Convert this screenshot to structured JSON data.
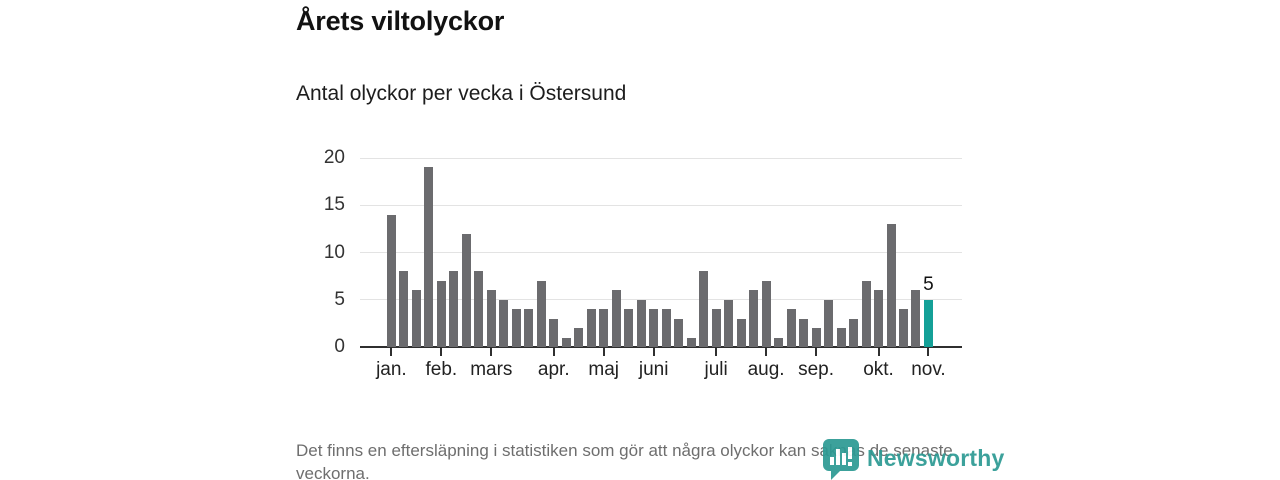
{
  "header": {
    "title": "Årets viltolyckor",
    "subtitle": "Antal olyckor per vecka i Östersund"
  },
  "footer": {
    "note": "Det finns en eftersläpning i statistiken som gör att några olyckor kan saknas de senaste veckorna.",
    "brand": "Newsworthy"
  },
  "chart_data": {
    "type": "bar",
    "title": "Årets viltolyckor",
    "subtitle": "Antal olyckor per vecka i Östersund",
    "xlabel": "",
    "ylabel": "",
    "ylim": [
      0,
      20
    ],
    "yticks": [
      0,
      5,
      10,
      15,
      20
    ],
    "grid": "horizontal",
    "x_unit": "vecka",
    "x": [
      1,
      2,
      3,
      4,
      5,
      6,
      7,
      8,
      9,
      10,
      11,
      12,
      13,
      14,
      15,
      16,
      17,
      18,
      19,
      20,
      21,
      22,
      23,
      24,
      25,
      26,
      27,
      28,
      29,
      30,
      31,
      32,
      33,
      34,
      35,
      36,
      37,
      38,
      39,
      40,
      41,
      42,
      43,
      44
    ],
    "values": [
      14,
      8,
      6,
      19,
      7,
      8,
      12,
      8,
      6,
      5,
      4,
      4,
      7,
      3,
      1,
      2,
      4,
      4,
      6,
      4,
      5,
      4,
      4,
      3,
      1,
      8,
      4,
      5,
      3,
      6,
      7,
      1,
      4,
      3,
      2,
      5,
      2,
      3,
      7,
      6,
      13,
      4,
      6,
      5
    ],
    "month_ticks": [
      {
        "label": "jan.",
        "week": 1
      },
      {
        "label": "feb.",
        "week": 5
      },
      {
        "label": "mars",
        "week": 9
      },
      {
        "label": "apr.",
        "week": 14
      },
      {
        "label": "maj",
        "week": 18
      },
      {
        "label": "juni",
        "week": 22
      },
      {
        "label": "juli",
        "week": 27
      },
      {
        "label": "aug.",
        "week": 31
      },
      {
        "label": "sep.",
        "week": 35
      },
      {
        "label": "okt.",
        "week": 40
      },
      {
        "label": "nov.",
        "week": 44
      }
    ],
    "highlight_week": 44,
    "annotation": {
      "week": 44,
      "text": "5"
    },
    "colors": {
      "bar": "#6b6b6e",
      "highlight": "#14a097",
      "axis": "#2f2f2f",
      "grid": "#e3e3e3",
      "brand": "#2c9a93"
    }
  }
}
